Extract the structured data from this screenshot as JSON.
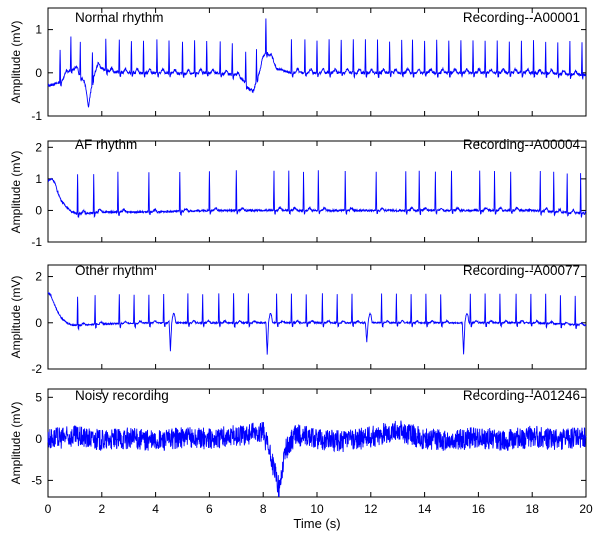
{
  "chart_data": [
    {
      "type": "line",
      "title": "Normal rhythm",
      "recording": "Recording--A00001",
      "xlabel": "",
      "ylabel": "Amplitude (mV)",
      "xlim": [
        0,
        20
      ],
      "ylim": [
        -1,
        1.5
      ],
      "yticks": [
        -1,
        0,
        1
      ],
      "grid": false,
      "series": [
        {
          "color": "#0000ff",
          "x": [
            0,
            0.3,
            0.5,
            0.6,
            0.8,
            1.0,
            1.2,
            1.35,
            1.5,
            1.6,
            1.7,
            1.8,
            1.9,
            2.0,
            2.2,
            2.4,
            3.0,
            4.0,
            5.0,
            6.0,
            7.0,
            7.3,
            7.6,
            7.9,
            8.1,
            8.3,
            8.5,
            9.0,
            10.0,
            12.0,
            14.0,
            16.0,
            18.0,
            20.0
          ],
          "y": [
            -0.3,
            -0.25,
            -0.2,
            -0.1,
            0.05,
            0.1,
            -0.05,
            -0.2,
            -0.8,
            -0.4,
            -0.1,
            0.1,
            0.15,
            0.1,
            0.05,
            0.02,
            0.0,
            0.0,
            -0.02,
            0.0,
            -0.05,
            -0.2,
            -0.5,
            0.1,
            0.5,
            0.35,
            0.1,
            0.0,
            0.0,
            0.0,
            0.0,
            0.0,
            0.0,
            -0.05
          ]
        }
      ],
      "beats": [
        0.45,
        0.85,
        1.2,
        1.65,
        2.15,
        2.65,
        3.1,
        3.55,
        4.05,
        4.5,
        5.0,
        5.45,
        5.9,
        6.4,
        6.85,
        7.35,
        7.75,
        8.1,
        9.05,
        9.55,
        10.0,
        10.45,
        10.9,
        11.35,
        11.8,
        12.25,
        12.7,
        13.15,
        13.55,
        14.0,
        14.45,
        14.9,
        15.35,
        15.8,
        16.25,
        16.7,
        17.15,
        17.6,
        18.05,
        18.5,
        18.95,
        19.4,
        19.85
      ],
      "beat_amplitude": 0.75,
      "beat_s_depth": -0.08
    },
    {
      "type": "line",
      "title": "AF rhythm",
      "recording": "Recording--A00004",
      "xlabel": "",
      "ylabel": "Amplitude (mV)",
      "xlim": [
        0,
        20
      ],
      "ylim": [
        -1,
        2.2
      ],
      "yticks": [
        -1,
        0,
        1,
        2
      ],
      "grid": false,
      "series": [
        {
          "color": "#0000ff",
          "x": [
            0,
            0.15,
            0.25,
            0.35,
            0.5,
            0.7,
            0.9,
            1.1,
            1.4,
            2.0,
            4.0,
            6.0,
            8.0,
            10.0,
            12.0,
            14.0,
            16.0,
            18.0,
            20.0
          ],
          "y": [
            0.95,
            1.0,
            0.9,
            0.6,
            0.3,
            0.1,
            -0.05,
            -0.1,
            -0.1,
            -0.05,
            -0.05,
            0.0,
            0.0,
            0.0,
            0.0,
            0.0,
            0.0,
            0.0,
            -0.1
          ]
        }
      ],
      "beats": [
        1.1,
        1.7,
        2.6,
        3.75,
        4.9,
        6.0,
        7.0,
        8.4,
        8.95,
        9.5,
        10.05,
        11.05,
        12.2,
        13.3,
        13.8,
        14.4,
        15.0,
        16.05,
        16.6,
        17.2,
        18.3,
        18.8,
        19.3,
        19.8
      ],
      "beat_amplitude": 1.25,
      "beat_s_depth": -0.1
    },
    {
      "type": "line",
      "title": "Other rhythm",
      "recording": "Recording--A00077",
      "xlabel": "",
      "ylabel": "Amplitude (mV)",
      "xlim": [
        0,
        20
      ],
      "ylim": [
        -2,
        2.5
      ],
      "yticks": [
        -2,
        0,
        2
      ],
      "grid": false,
      "series": [
        {
          "color": "#0000ff",
          "x": [
            0,
            0.1,
            0.2,
            0.35,
            0.5,
            0.7,
            0.9,
            1.2,
            2.0,
            4.0,
            6.0,
            8.0,
            10.0,
            12.0,
            14.0,
            16.0,
            18.0,
            20.0
          ],
          "y": [
            1.3,
            1.2,
            0.9,
            0.5,
            0.2,
            0.0,
            -0.1,
            -0.1,
            -0.05,
            0.0,
            0.0,
            0.0,
            0.0,
            0.0,
            0.0,
            0.0,
            0.0,
            -0.1
          ]
        }
      ],
      "beats": [
        1.1,
        1.75,
        2.65,
        3.2,
        3.75,
        4.3,
        5.2,
        5.75,
        6.35,
        6.9,
        7.45,
        8.5,
        9.05,
        9.6,
        10.2,
        10.75,
        11.3,
        12.4,
        12.95,
        13.5,
        14.05,
        14.6,
        15.7,
        16.25,
        16.8,
        17.4,
        17.95,
        18.5,
        19.05,
        19.6
      ],
      "beat_amplitude": 1.25,
      "beat_s_depth": -0.15,
      "pvcs": [
        {
          "x": 4.55,
          "y": -1.3
        },
        {
          "x": 8.15,
          "y": -1.4
        },
        {
          "x": 11.85,
          "y": -0.85
        },
        {
          "x": 15.45,
          "y": -1.35
        }
      ]
    },
    {
      "type": "line",
      "title": "Noisy recording",
      "recording": "Recording--A01246",
      "xlabel": "Time (s)",
      "ylabel": "Amplitude (mV)",
      "xlim": [
        0,
        20
      ],
      "ylim": [
        -7,
        6
      ],
      "yticks": [
        -5,
        0,
        5
      ],
      "xticks": [
        0,
        2,
        4,
        6,
        8,
        10,
        12,
        14,
        16,
        18,
        20
      ],
      "grid": false,
      "noise_amplitude": 1.2,
      "series": [
        {
          "color": "#0000ff",
          "x": [
            0,
            1,
            2,
            3,
            4,
            5,
            6,
            7,
            8,
            8.4,
            8.6,
            8.8,
            9.2,
            10,
            11,
            12,
            13,
            14,
            15,
            16,
            17,
            18,
            19,
            20
          ],
          "y": [
            0,
            0.3,
            -0.2,
            0.1,
            -0.3,
            0.2,
            0,
            0.4,
            0.8,
            -3.5,
            -6.2,
            -1.5,
            0.5,
            0,
            -0.3,
            0.2,
            1.0,
            0,
            -0.3,
            0.2,
            -0.2,
            0.3,
            -0.1,
            0.2
          ]
        }
      ]
    }
  ]
}
